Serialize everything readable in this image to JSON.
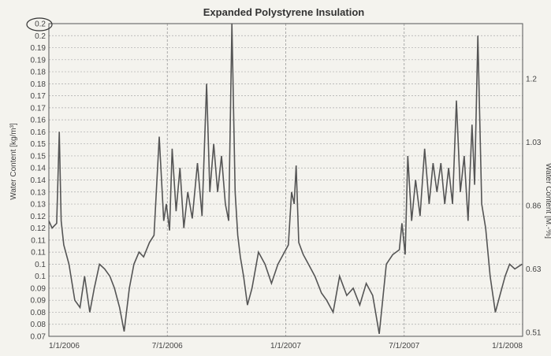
{
  "chart_data": {
    "type": "line",
    "title": "Expanded Polystyrene Insulation",
    "ylabel": "Water Content [kg/m³]",
    "ylabel_right": "Water Content [M.-%]",
    "ylim": [
      0.07,
      0.2
    ],
    "yticks": [
      "0.07",
      "0.08",
      "0.08",
      "0.09",
      "0.09",
      "0.1",
      "0.1",
      "0.11",
      "0.11",
      "0.12",
      "0.12",
      "0.13",
      "0.13",
      "0.14",
      "0.14",
      "0.15",
      "0.15",
      "0.16",
      "0.16",
      "0.17",
      "0.17",
      "0.18",
      "0.18",
      "0.19",
      "0.19",
      "0.2",
      "0.2"
    ],
    "yticks_right": [
      "0.51",
      "0.63",
      "0.86",
      "1.03",
      "1.2"
    ],
    "xticks": [
      "1/1/2006",
      "7/1/2006",
      "1/1/2007",
      "7/1/2007",
      "1/1/2008"
    ],
    "grid": true,
    "series": [
      {
        "x": [
          "2006-01-01",
          "2006-01-06",
          "2006-01-13",
          "2006-01-17",
          "2006-01-20",
          "2006-01-24",
          "2006-02-01",
          "2006-02-10",
          "2006-02-18",
          "2006-02-25",
          "2006-03-05",
          "2006-03-12",
          "2006-03-20",
          "2006-03-28",
          "2006-04-05",
          "2006-04-12",
          "2006-04-20",
          "2006-04-27",
          "2006-05-05",
          "2006-05-12",
          "2006-05-20",
          "2006-05-27",
          "2006-06-05",
          "2006-06-12",
          "2006-06-20",
          "2006-06-27",
          "2006-07-01",
          "2006-07-06",
          "2006-07-10",
          "2006-07-16",
          "2006-07-22",
          "2006-07-28",
          "2006-08-03",
          "2006-08-10",
          "2006-08-18",
          "2006-08-25",
          "2006-09-01",
          "2006-09-06",
          "2006-09-12",
          "2006-09-18",
          "2006-09-24",
          "2006-09-30",
          "2006-10-05",
          "2006-10-10",
          "2006-10-15",
          "2006-10-19",
          "2006-10-23",
          "2006-10-28",
          "2006-11-03",
          "2006-11-10",
          "2006-11-20",
          "2006-11-30",
          "2006-12-10",
          "2006-12-20",
          "2006-12-30",
          "2007-01-05",
          "2007-01-10",
          "2007-01-14",
          "2007-01-17",
          "2007-01-21",
          "2007-01-28",
          "2007-02-05",
          "2007-02-15",
          "2007-02-25",
          "2007-03-05",
          "2007-03-15",
          "2007-03-25",
          "2007-04-05",
          "2007-04-15",
          "2007-04-25",
          "2007-05-05",
          "2007-05-15",
          "2007-05-25",
          "2007-06-05",
          "2007-06-15",
          "2007-06-25",
          "2007-06-29",
          "2007-07-04",
          "2007-07-08",
          "2007-07-14",
          "2007-07-20",
          "2007-07-27",
          "2007-08-03",
          "2007-08-10",
          "2007-08-16",
          "2007-08-22",
          "2007-08-28",
          "2007-09-03",
          "2007-09-09",
          "2007-09-15",
          "2007-09-21",
          "2007-09-27",
          "2007-10-03",
          "2007-10-09",
          "2007-10-15",
          "2007-10-19",
          "2007-10-24",
          "2007-10-30",
          "2007-11-05",
          "2007-11-12",
          "2007-11-20",
          "2007-11-28",
          "2007-12-05",
          "2007-12-12",
          "2007-12-20",
          "2007-12-31"
        ],
        "y": [
          0.118,
          0.115,
          0.117,
          0.155,
          0.118,
          0.108,
          0.1,
          0.085,
          0.082,
          0.095,
          0.08,
          0.09,
          0.1,
          0.098,
          0.095,
          0.09,
          0.082,
          0.072,
          0.09,
          0.1,
          0.105,
          0.103,
          0.109,
          0.112,
          0.153,
          0.118,
          0.125,
          0.114,
          0.148,
          0.122,
          0.14,
          0.115,
          0.13,
          0.119,
          0.142,
          0.12,
          0.175,
          0.13,
          0.15,
          0.13,
          0.145,
          0.125,
          0.118,
          0.2,
          0.13,
          0.112,
          0.103,
          0.095,
          0.083,
          0.09,
          0.105,
          0.1,
          0.092,
          0.1,
          0.105,
          0.108,
          0.13,
          0.125,
          0.141,
          0.109,
          0.104,
          0.1,
          0.095,
          0.088,
          0.085,
          0.08,
          0.095,
          0.087,
          0.09,
          0.083,
          0.092,
          0.087,
          0.071,
          0.1,
          0.104,
          0.106,
          0.117,
          0.104,
          0.145,
          0.118,
          0.135,
          0.12,
          0.148,
          0.125,
          0.142,
          0.13,
          0.142,
          0.125,
          0.14,
          0.125,
          0.168,
          0.13,
          0.145,
          0.118,
          0.158,
          0.133,
          0.195,
          0.125,
          0.115,
          0.095,
          0.08,
          0.088,
          0.095,
          0.1,
          0.098,
          0.1
        ]
      }
    ]
  }
}
